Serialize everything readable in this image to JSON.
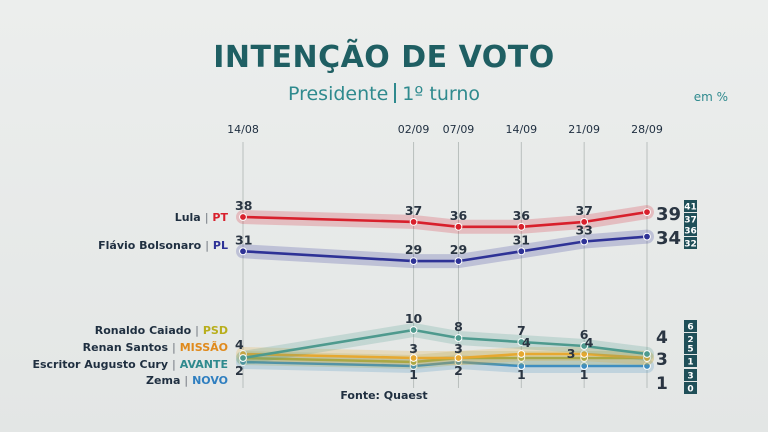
{
  "header": {
    "title": "INTENÇÃO DE VOTO",
    "subtitle_left": "Presidente",
    "subtitle_right": "1º turno",
    "unit": "em %"
  },
  "footer": {
    "source": "Fonte: Quaest"
  },
  "colors": {
    "title": "#1f5f63",
    "accent": "#2f8a8e",
    "label_dark": "#1f2f40",
    "margin_box": "#1f4f58"
  },
  "chart_data": {
    "type": "line",
    "x": [
      "14/08",
      "02/09",
      "07/09",
      "14/09",
      "21/09",
      "28/09"
    ],
    "x_days": [
      0,
      19,
      24,
      31,
      38,
      45
    ],
    "ylim": [
      0,
      40
    ],
    "grid": "vertical",
    "series": [
      {
        "key": "lula",
        "name": "Lula",
        "party": "PT",
        "color": "#d8202c",
        "party_color": "#d8202c",
        "values": [
          38,
          37,
          36,
          36,
          37,
          39
        ],
        "final_label": "39",
        "margin": [
          "41",
          "37"
        ]
      },
      {
        "key": "flavio",
        "name": "Flávio Bolsonaro",
        "party": "PL",
        "color": "#2e3296",
        "party_color": "#2e3296",
        "values": [
          31,
          29,
          29,
          31,
          33,
          34
        ],
        "final_label": "34",
        "margin": [
          "36",
          "32"
        ]
      },
      {
        "key": "caiado",
        "name": "Ronaldo Caiado",
        "party": "PSD",
        "color": "#4e9a8e",
        "party_color": "#b8ae1c",
        "values": [
          3,
          10,
          8,
          7,
          6,
          4
        ],
        "final_label": "4",
        "margin": [
          "6",
          "2"
        ]
      },
      {
        "key": "renan",
        "name": "Renan Santos",
        "party": "MISSÃO",
        "color": "#e6a830",
        "party_color": "#e08a1c",
        "values": [
          4,
          3,
          3,
          4,
          4,
          3
        ],
        "final_label": "3",
        "margin": [
          "5",
          "1"
        ]
      },
      {
        "key": "cury",
        "name": "Escritor Augusto Cury",
        "party": "AVANTE",
        "color": "#9aa84a",
        "party_color": "#2f8a8e",
        "values": [
          3,
          2,
          3,
          3,
          3,
          3
        ],
        "final_label": "3",
        "margin": [
          "5",
          "1"
        ]
      },
      {
        "key": "zema",
        "name": "Zema",
        "party": "NOVO",
        "color": "#3f8ec0",
        "party_color": "#2f7fc0",
        "values": [
          2,
          1,
          2,
          1,
          1,
          1
        ],
        "final_label": "1",
        "margin": [
          "3",
          "0"
        ]
      }
    ],
    "point_labels": [
      {
        "series": "lula",
        "i": 0,
        "text": "38"
      },
      {
        "series": "lula",
        "i": 1,
        "text": "37"
      },
      {
        "series": "lula",
        "i": 2,
        "text": "36"
      },
      {
        "series": "lula",
        "i": 3,
        "text": "36"
      },
      {
        "series": "lula",
        "i": 4,
        "text": "37"
      },
      {
        "series": "flavio",
        "i": 0,
        "text": "31"
      },
      {
        "series": "flavio",
        "i": 1,
        "text": "29"
      },
      {
        "series": "flavio",
        "i": 2,
        "text": "29"
      },
      {
        "series": "flavio",
        "i": 3,
        "text": "31"
      },
      {
        "series": "flavio",
        "i": 4,
        "text": "33"
      },
      {
        "series": "renan",
        "i": 0,
        "text": "4"
      },
      {
        "series": "zema",
        "i": 0,
        "text": "2"
      },
      {
        "series": "caiado",
        "i": 1,
        "text": "10"
      },
      {
        "series": "renan",
        "i": 1,
        "text": "3"
      },
      {
        "series": "zema",
        "i": 1,
        "text": "1"
      },
      {
        "series": "caiado",
        "i": 2,
        "text": "8"
      },
      {
        "series": "renan",
        "i": 2,
        "text": "3"
      },
      {
        "series": "zema",
        "i": 2,
        "text": "2"
      },
      {
        "series": "caiado",
        "i": 3,
        "text": "7"
      },
      {
        "series": "renan",
        "i": 3,
        "text": "4"
      },
      {
        "series": "zema",
        "i": 3,
        "text": "1"
      },
      {
        "series": "caiado",
        "i": 4,
        "text": "6"
      },
      {
        "series": "renan",
        "i": 4,
        "text": "4"
      },
      {
        "series": "cury",
        "i": 4,
        "text": "3"
      },
      {
        "series": "zema",
        "i": 4,
        "text": "1"
      }
    ]
  }
}
